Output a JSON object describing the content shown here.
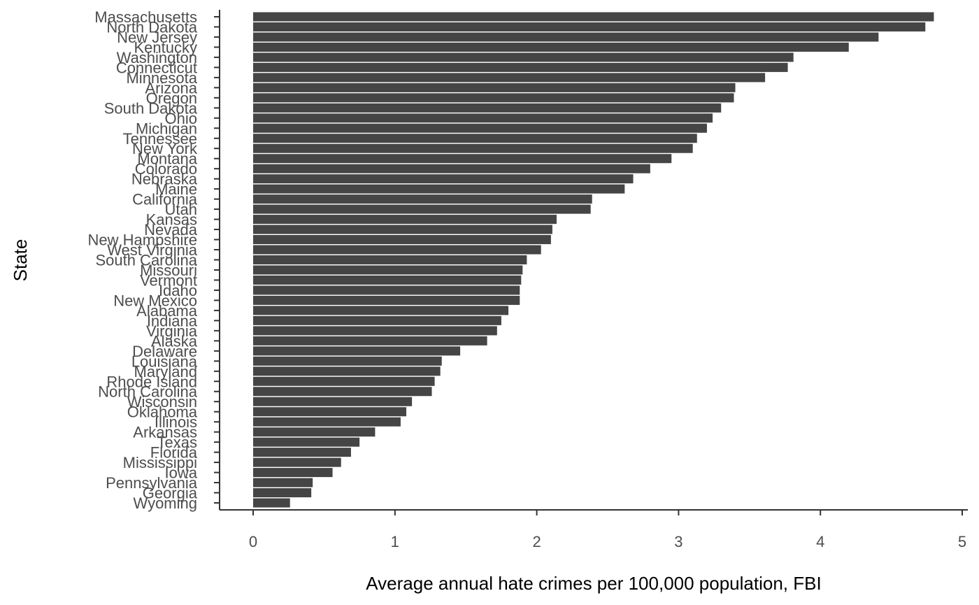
{
  "chart_data": {
    "type": "bar",
    "orientation": "horizontal",
    "title": "",
    "xlabel": "Average annual hate crimes per 100,000 population, FBI",
    "ylabel": "State",
    "xlim": [
      -0.24,
      5.02
    ],
    "x_ticks": [
      0,
      1,
      2,
      3,
      4,
      5
    ],
    "grid": false,
    "legend": "none",
    "bar_color": "#454545",
    "categories": [
      "Massachusetts",
      "North Dakota",
      "New Jersey",
      "Kentucky",
      "Washington",
      "Connecticut",
      "Minnesota",
      "Arizona",
      "Oregon",
      "South Dakota",
      "Ohio",
      "Michigan",
      "Tennessee",
      "New York",
      "Montana",
      "Colorado",
      "Nebraska",
      "Maine",
      "California",
      "Utah",
      "Kansas",
      "Nevada",
      "New Hampshire",
      "West Virginia",
      "South Carolina",
      "Missouri",
      "Vermont",
      "Idaho",
      "New Mexico",
      "Alabama",
      "Indiana",
      "Virginia",
      "Alaska",
      "Delaware",
      "Louisiana",
      "Maryland",
      "Rhode Island",
      "North Carolina",
      "Wisconsin",
      "Oklahoma",
      "Illinois",
      "Arkansas",
      "Texas",
      "Florida",
      "Mississippi",
      "Iowa",
      "Pennsylvania",
      "Georgia",
      "Wyoming"
    ],
    "values": [
      4.8,
      4.74,
      4.41,
      4.2,
      3.81,
      3.77,
      3.61,
      3.4,
      3.39,
      3.3,
      3.24,
      3.2,
      3.13,
      3.1,
      2.95,
      2.8,
      2.68,
      2.62,
      2.39,
      2.38,
      2.14,
      2.11,
      2.1,
      2.03,
      1.93,
      1.9,
      1.89,
      1.88,
      1.88,
      1.8,
      1.75,
      1.72,
      1.65,
      1.46,
      1.33,
      1.32,
      1.28,
      1.26,
      1.12,
      1.08,
      1.04,
      0.86,
      0.75,
      0.69,
      0.62,
      0.56,
      0.42,
      0.41,
      0.26
    ]
  }
}
